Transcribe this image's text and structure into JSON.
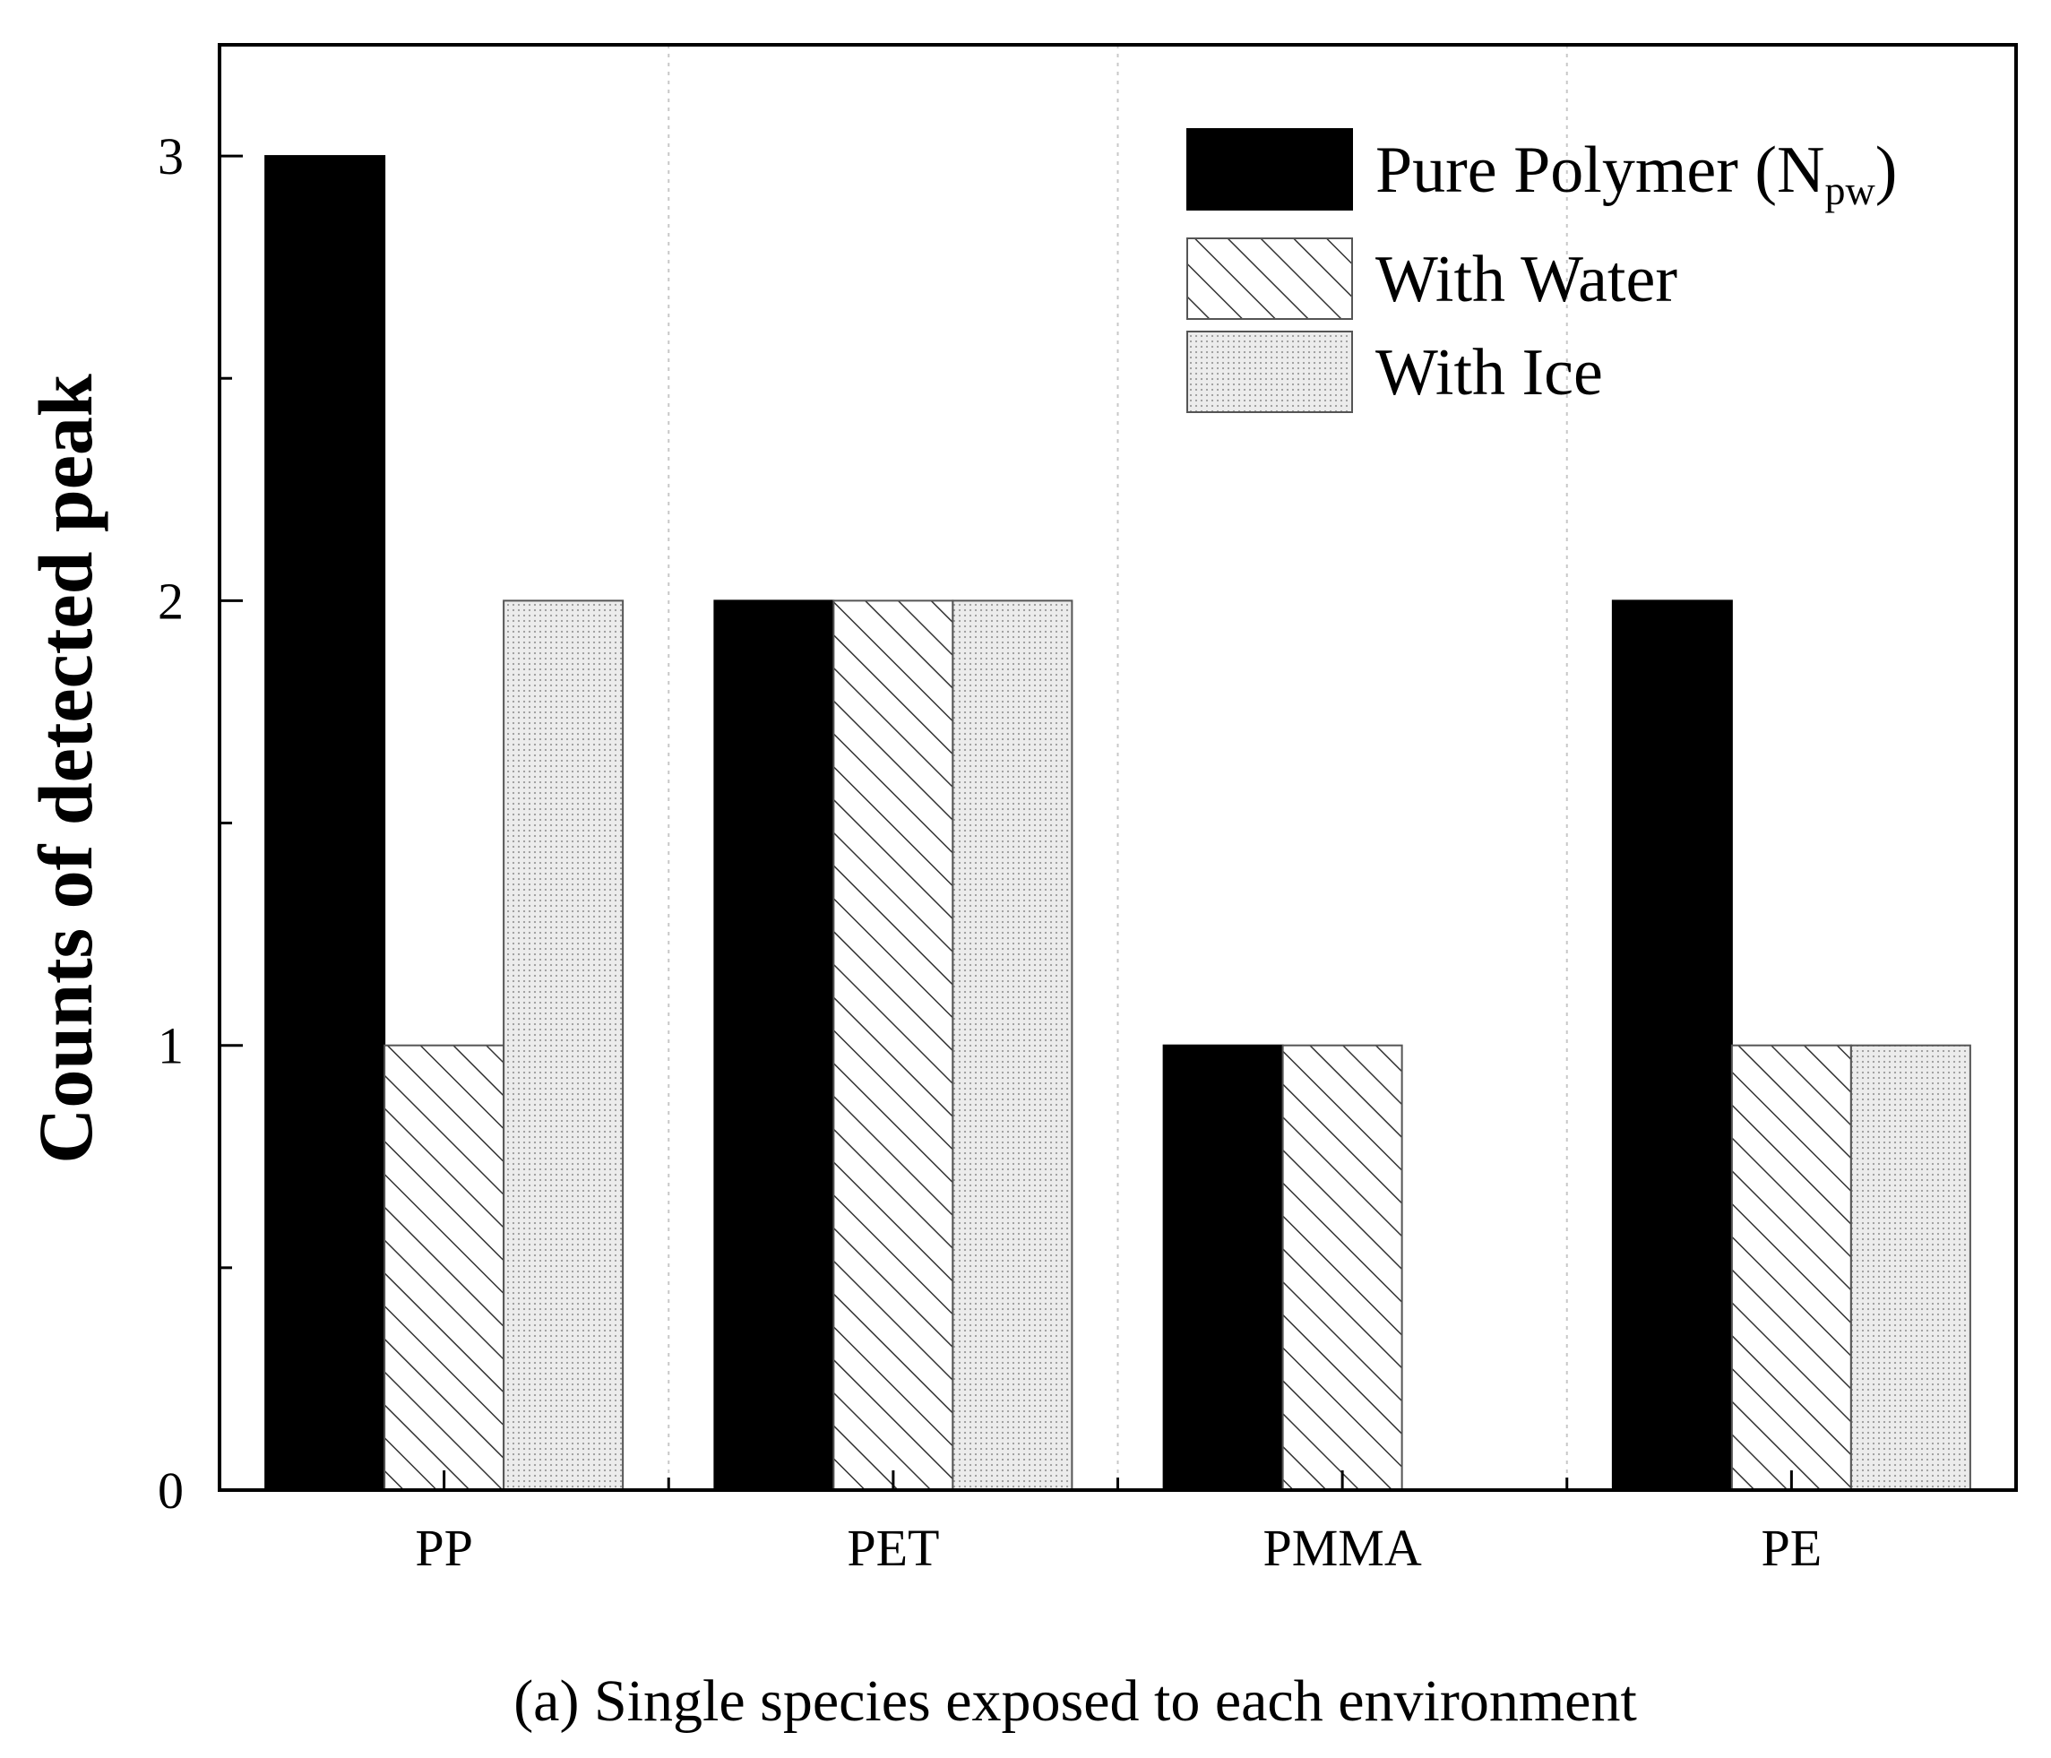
{
  "chart_data": {
    "type": "bar",
    "categories": [
      "PP",
      "PET",
      "PMMA",
      "PE"
    ],
    "series": [
      {
        "name": "Pure Polymer",
        "subscript": "pw",
        "legend_prefix": "Pure Polymer (N",
        "legend_suffix": ")",
        "values": [
          3,
          2,
          1,
          2
        ],
        "fill": "solid",
        "color": "#000000"
      },
      {
        "name": "With Water",
        "values": [
          1,
          2,
          1,
          1
        ],
        "fill": "hatch",
        "color": "#ffffff"
      },
      {
        "name": "With Ice",
        "values": [
          2,
          2,
          0,
          1
        ],
        "fill": "dots",
        "color": "#e6e6e6"
      }
    ],
    "ylabel": "Counts of detected peak",
    "xlabel": "",
    "ylim": [
      0,
      3.25
    ],
    "yticks": [
      0,
      1,
      2,
      3
    ],
    "yticks_minor": [
      0.5,
      1.5,
      2.5
    ],
    "legend_position": "top-right",
    "grid": "vertical dotted separators between categories"
  },
  "caption": "(a) Single species exposed to each environment"
}
